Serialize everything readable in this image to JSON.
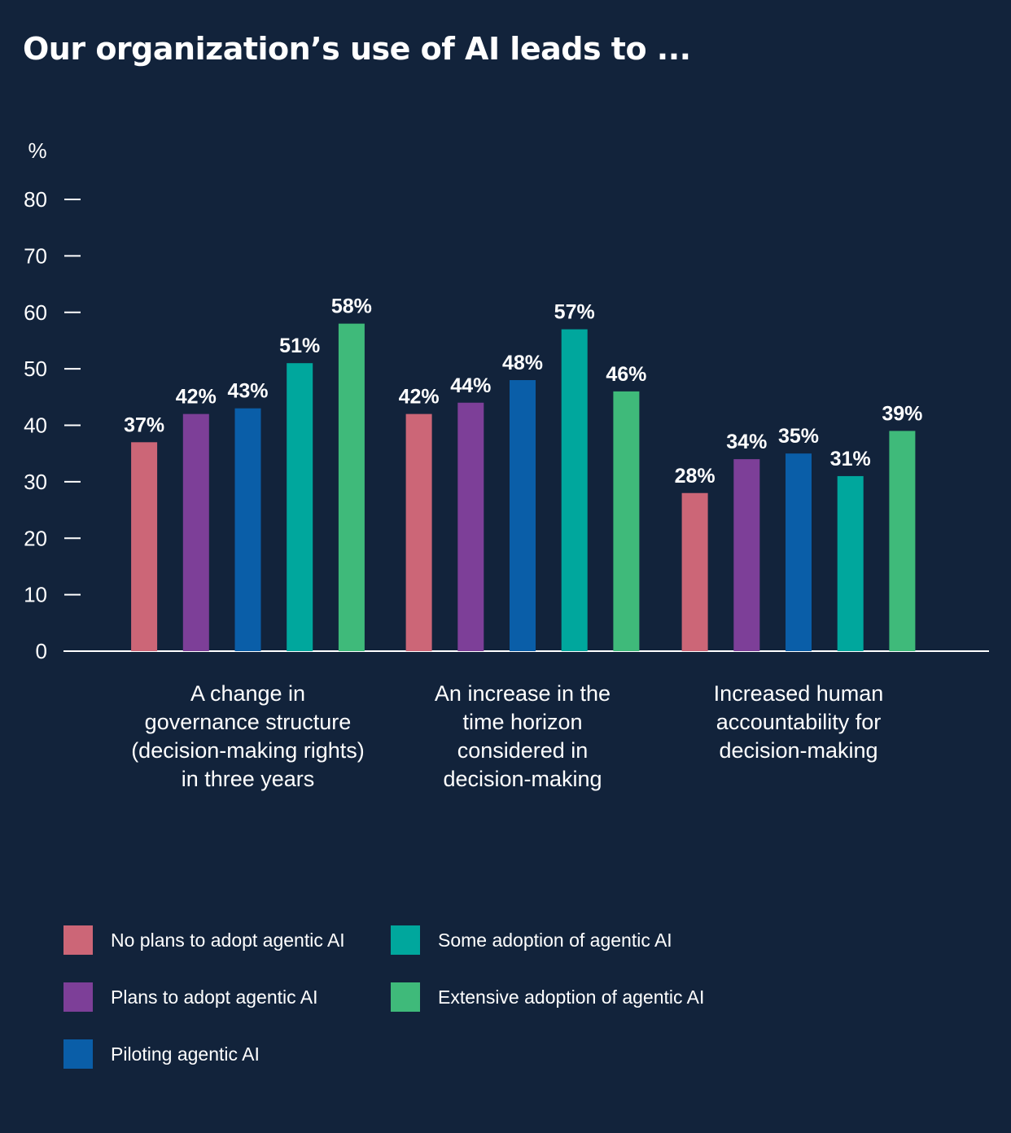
{
  "chart_data": {
    "type": "bar",
    "title": "Our organization’s use of AI leads to ...",
    "ylabel": "%",
    "ylim": [
      0,
      80
    ],
    "yticks": [
      "0",
      "10",
      "20",
      "30",
      "40",
      "50",
      "60",
      "70",
      "80"
    ],
    "grid": false,
    "legend_placement": "bottom",
    "categories": [
      [
        "A change in",
        "governance structure",
        "(decision-making rights)",
        "in three years"
      ],
      [
        "An increase in the",
        "time horizon",
        "considered in",
        "decision-making"
      ],
      [
        "Increased human",
        "accountability for",
        "decision-making"
      ]
    ],
    "series": [
      {
        "name": "No plans to adopt agentic AI",
        "color": "#cc6677",
        "values": [
          37,
          42,
          28
        ],
        "labels": [
          "37%",
          "42%",
          "28%"
        ]
      },
      {
        "name": "Plans to  adopt agentic AI",
        "color": "#7d3f98",
        "values": [
          42,
          44,
          34
        ],
        "labels": [
          "42%",
          "44%",
          "34%"
        ]
      },
      {
        "name": "Piloting agentic AI",
        "color": "#0a5ea8",
        "values": [
          43,
          48,
          35
        ],
        "labels": [
          "43%",
          "48%",
          "35%"
        ]
      },
      {
        "name": "Some adoption of agentic AI",
        "color": "#00a79d",
        "values": [
          51,
          57,
          31
        ],
        "labels": [
          "51%",
          "57%",
          "31%"
        ]
      },
      {
        "name": "Extensive adoption of agentic AI",
        "color": "#3fba7a",
        "values": [
          58,
          46,
          39
        ],
        "labels": [
          "58%",
          "46%",
          "39%"
        ]
      }
    ]
  }
}
